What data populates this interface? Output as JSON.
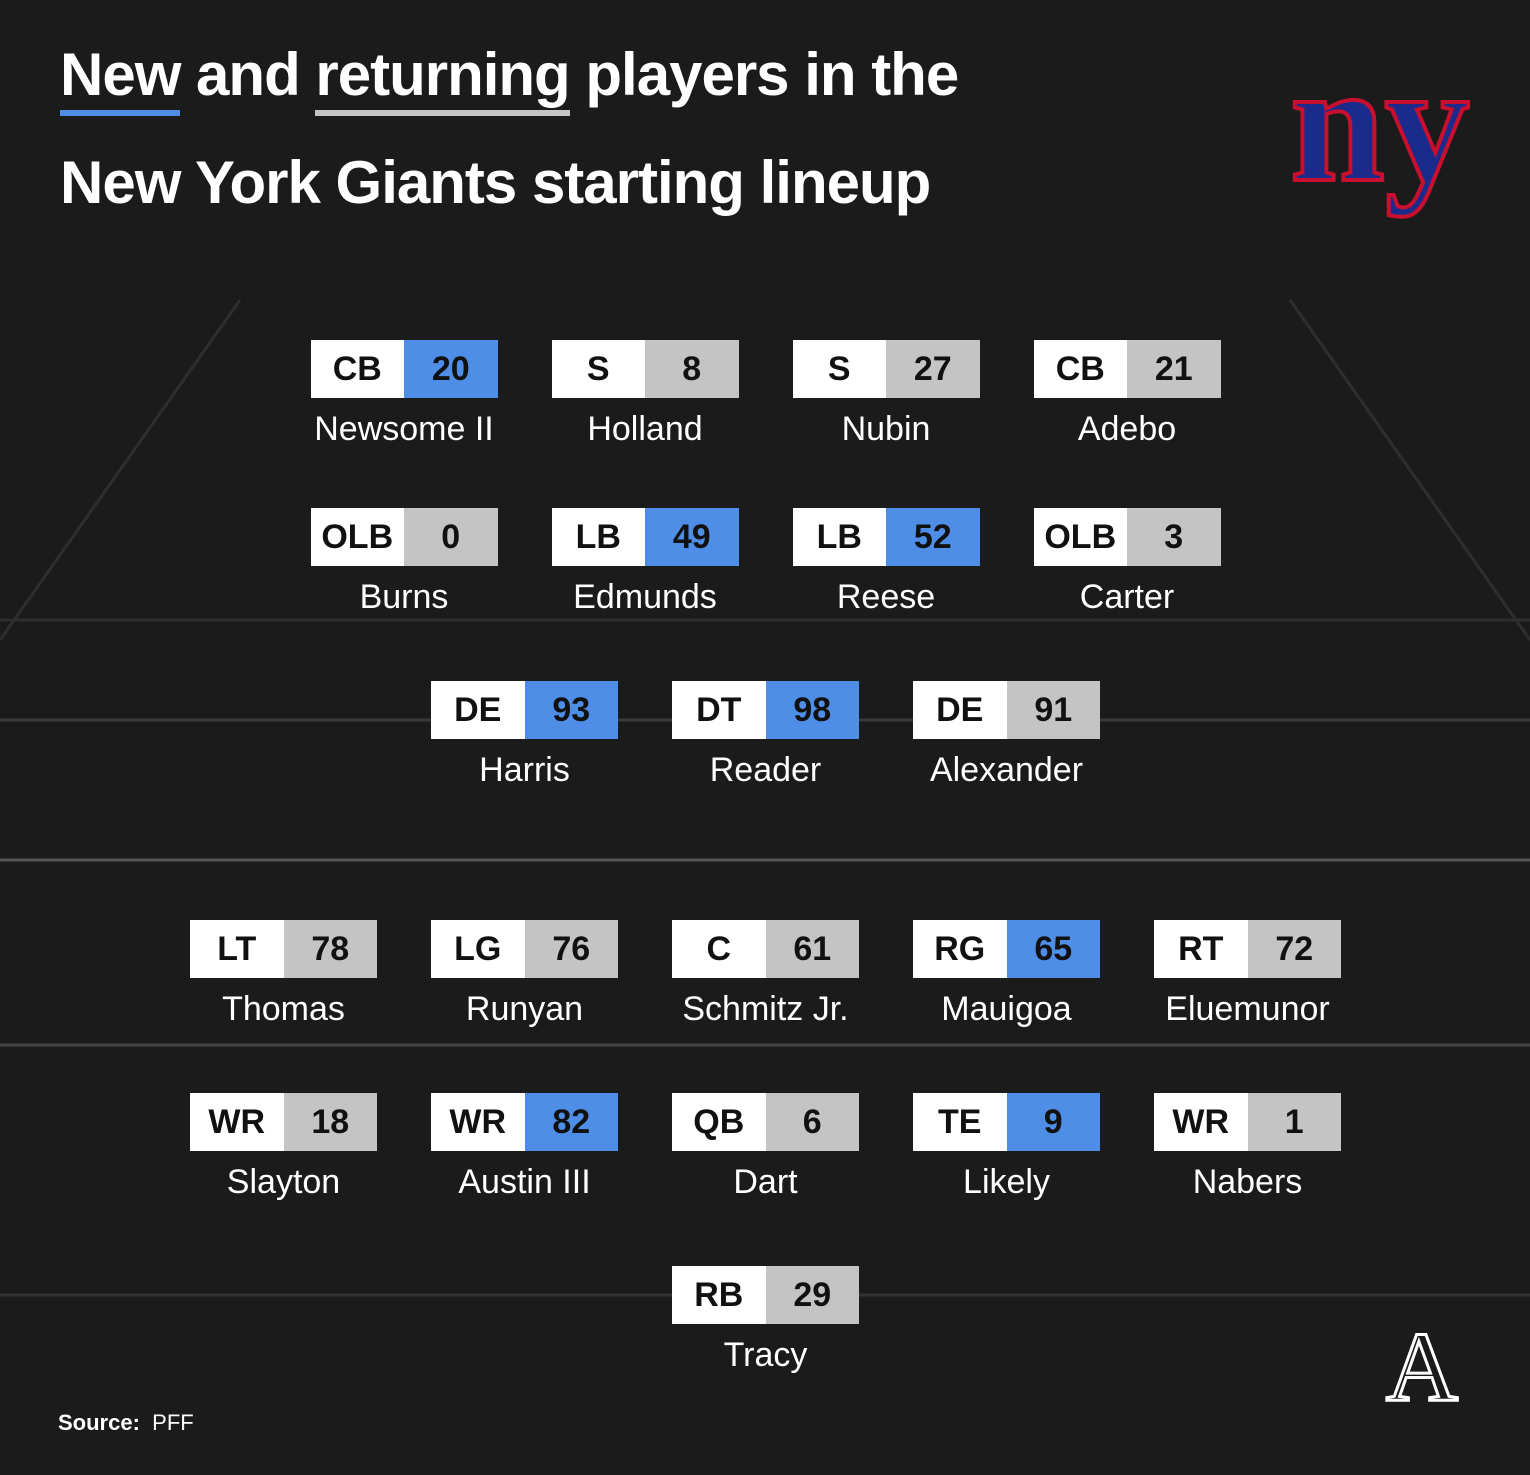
{
  "header": {
    "title_new": "New",
    "title_and": "and",
    "title_returning": "returning",
    "title_rest": "players in the",
    "title_line2": "New York Giants starting lineup",
    "team_logo": "ny"
  },
  "status_colors": {
    "new": "#4e8ee6",
    "returning": "#c4c4c4"
  },
  "rows": [
    [
      {
        "position": "CB",
        "number": 20,
        "name": "Newsome II",
        "status": "new"
      },
      {
        "position": "S",
        "number": 8,
        "name": "Holland",
        "status": "returning"
      },
      {
        "position": "S",
        "number": 27,
        "name": "Nubin",
        "status": "returning"
      },
      {
        "position": "CB",
        "number": 21,
        "name": "Adebo",
        "status": "returning"
      }
    ],
    [
      {
        "position": "OLB",
        "number": 0,
        "name": "Burns",
        "status": "returning"
      },
      {
        "position": "LB",
        "number": 49,
        "name": "Edmunds",
        "status": "new"
      },
      {
        "position": "LB",
        "number": 52,
        "name": "Reese",
        "status": "new"
      },
      {
        "position": "OLB",
        "number": 3,
        "name": "Carter",
        "status": "returning"
      }
    ],
    [
      {
        "position": "DE",
        "number": 93,
        "name": "Harris",
        "status": "new"
      },
      {
        "position": "DT",
        "number": 98,
        "name": "Reader",
        "status": "new"
      },
      {
        "position": "DE",
        "number": 91,
        "name": "Alexander",
        "status": "returning"
      }
    ],
    [
      {
        "position": "LT",
        "number": 78,
        "name": "Thomas",
        "status": "returning"
      },
      {
        "position": "LG",
        "number": 76,
        "name": "Runyan",
        "status": "returning"
      },
      {
        "position": "C",
        "number": 61,
        "name": "Schmitz Jr.",
        "status": "returning"
      },
      {
        "position": "RG",
        "number": 65,
        "name": "Mauigoa",
        "status": "new"
      },
      {
        "position": "RT",
        "number": 72,
        "name": "Eluemunor",
        "status": "returning"
      }
    ],
    [
      {
        "position": "WR",
        "number": 18,
        "name": "Slayton",
        "status": "returning"
      },
      {
        "position": "WR",
        "number": 82,
        "name": "Austin III",
        "status": "new"
      },
      {
        "position": "QB",
        "number": 6,
        "name": "Dart",
        "status": "returning"
      },
      {
        "position": "TE",
        "number": 9,
        "name": "Likely",
        "status": "new"
      },
      {
        "position": "WR",
        "number": 1,
        "name": "Nabers",
        "status": "returning"
      }
    ],
    [
      {
        "position": "RB",
        "number": 29,
        "name": "Tracy",
        "status": "returning"
      }
    ]
  ],
  "footer": {
    "source_label": "Source:",
    "source": "PFF",
    "publisher_logo": "A"
  }
}
